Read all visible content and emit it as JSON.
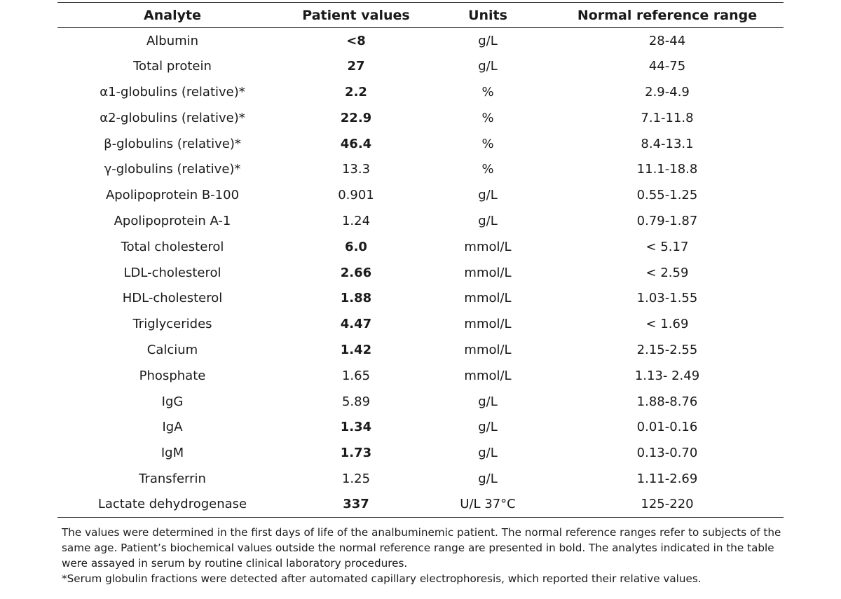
{
  "table": {
    "headers": [
      "Analyte",
      "Patient values",
      "Units",
      "Normal reference range"
    ],
    "rows": [
      {
        "analyte": "Albumin",
        "value": "<8",
        "units": "g/L",
        "range": "28-44",
        "bold": true
      },
      {
        "analyte": "Total protein",
        "value": "27",
        "units": "g/L",
        "range": "44-75",
        "bold": true
      },
      {
        "analyte": "α1-globulins (relative)*",
        "value": "2.2",
        "units": "%",
        "range": "2.9-4.9",
        "bold": true
      },
      {
        "analyte": "α2-globulins (relative)*",
        "value": "22.9",
        "units": "%",
        "range": "7.1-11.8",
        "bold": true
      },
      {
        "analyte": "β-globulins (relative)*",
        "value": "46.4",
        "units": "%",
        "range": "8.4-13.1",
        "bold": true
      },
      {
        "analyte": "γ-globulins (relative)*",
        "value": "13.3",
        "units": "%",
        "range": "11.1-18.8",
        "bold": false
      },
      {
        "analyte": "Apolipoprotein B-100",
        "value": "0.901",
        "units": "g/L",
        "range": "0.55-1.25",
        "bold": false
      },
      {
        "analyte": "Apolipoprotein A-1",
        "value": "1.24",
        "units": "g/L",
        "range": "0.79-1.87",
        "bold": false
      },
      {
        "analyte": "Total cholesterol",
        "value": "6.0",
        "units": "mmol/L",
        "range": "< 5.17",
        "bold": true
      },
      {
        "analyte": "LDL-cholesterol",
        "value": "2.66",
        "units": "mmol/L",
        "range": "< 2.59",
        "bold": true
      },
      {
        "analyte": "HDL-cholesterol",
        "value": "1.88",
        "units": "mmol/L",
        "range": "1.03-1.55",
        "bold": true
      },
      {
        "analyte": "Triglycerides",
        "value": "4.47",
        "units": "mmol/L",
        "range": "< 1.69",
        "bold": true
      },
      {
        "analyte": "Calcium",
        "value": "1.42",
        "units": "mmol/L",
        "range": "2.15-2.55",
        "bold": true
      },
      {
        "analyte": "Phosphate",
        "value": "1.65",
        "units": "mmol/L",
        "range": "1.13- 2.49",
        "bold": false
      },
      {
        "analyte": "IgG",
        "value": "5.89",
        "units": "g/L",
        "range": "1.88-8.76",
        "bold": false
      },
      {
        "analyte": "IgA",
        "value": "1.34",
        "units": "g/L",
        "range": "0.01-0.16",
        "bold": true
      },
      {
        "analyte": "IgM",
        "value": "1.73",
        "units": "g/L",
        "range": "0.13-0.70",
        "bold": true
      },
      {
        "analyte": "Transferrin",
        "value": "1.25",
        "units": "g/L",
        "range": "1.11-2.69",
        "bold": false
      },
      {
        "analyte": "Lactate dehydrogenase",
        "value": "337",
        "units": "U/L 37°C",
        "range": "125-220",
        "bold": true
      }
    ]
  },
  "footnotes": {
    "note1": "The values were determined in the first days of life of the analbuminemic patient. The normal reference ranges refer to subjects of the same age. Patient’s biochemical values outside the normal reference range are presented in bold. The analytes indicated in the table were assayed in serum by routine clinical laboratory procedures.",
    "note2": "*Serum globulin fractions were detected after automated capillary electrophoresis, which reported their relative values."
  }
}
